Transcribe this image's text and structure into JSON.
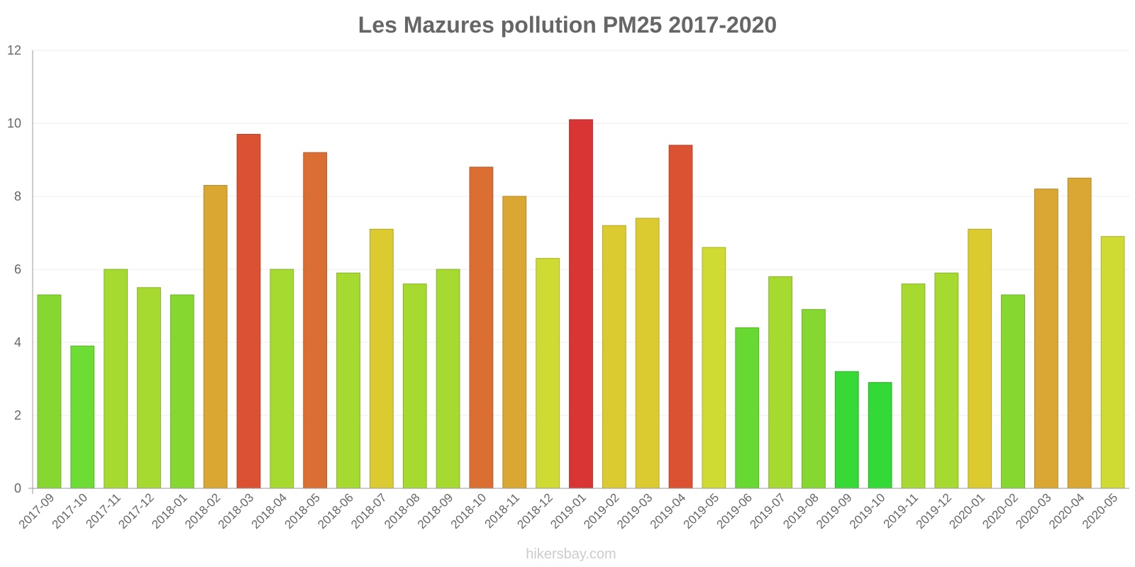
{
  "chart_data": {
    "type": "bar",
    "title": "Les Mazures pollution PM25 2017-2020",
    "xlabel": "",
    "ylabel": "",
    "ylim": [
      0,
      12
    ],
    "yticks": [
      0,
      2,
      4,
      6,
      8,
      10,
      12
    ],
    "grid": true,
    "categories": [
      "2017-09",
      "2017-10",
      "2017-11",
      "2017-12",
      "2018-01",
      "2018-02",
      "2018-03",
      "2018-04",
      "2018-05",
      "2018-06",
      "2018-07",
      "2018-08",
      "2018-09",
      "2018-10",
      "2018-11",
      "2018-12",
      "2019-01",
      "2019-02",
      "2019-03",
      "2019-04",
      "2019-05",
      "2019-06",
      "2019-07",
      "2019-08",
      "2019-09",
      "2019-10",
      "2019-11",
      "2019-12",
      "2020-01",
      "2020-02",
      "2020-03",
      "2020-04",
      "2020-05"
    ],
    "values": [
      5.3,
      3.9,
      6.0,
      5.5,
      5.3,
      8.3,
      9.7,
      6.0,
      9.2,
      5.9,
      7.1,
      5.6,
      6.0,
      8.8,
      8.0,
      6.3,
      10.1,
      7.2,
      7.4,
      9.4,
      6.6,
      4.4,
      5.8,
      4.9,
      3.2,
      2.9,
      5.6,
      5.9,
      7.1,
      5.3,
      8.2,
      8.5,
      6.9
    ],
    "colors": [
      "#86d831",
      "#6ddc35",
      "#a6da31",
      "#a6da31",
      "#86d831",
      "#dba733",
      "#db5233",
      "#a6da31",
      "#db6f33",
      "#a6da31",
      "#dcca31",
      "#a6da31",
      "#a6da31",
      "#db6f33",
      "#dba733",
      "#cfdb33",
      "#da3535",
      "#dcca31",
      "#dcca31",
      "#db5233",
      "#cfdb33",
      "#68d933",
      "#a6da31",
      "#86d831",
      "#38d936",
      "#33d936",
      "#a6da31",
      "#a6da31",
      "#dcca31",
      "#86d831",
      "#dba733",
      "#dba733",
      "#cfdb33"
    ]
  },
  "watermark": "hikersbay.com"
}
